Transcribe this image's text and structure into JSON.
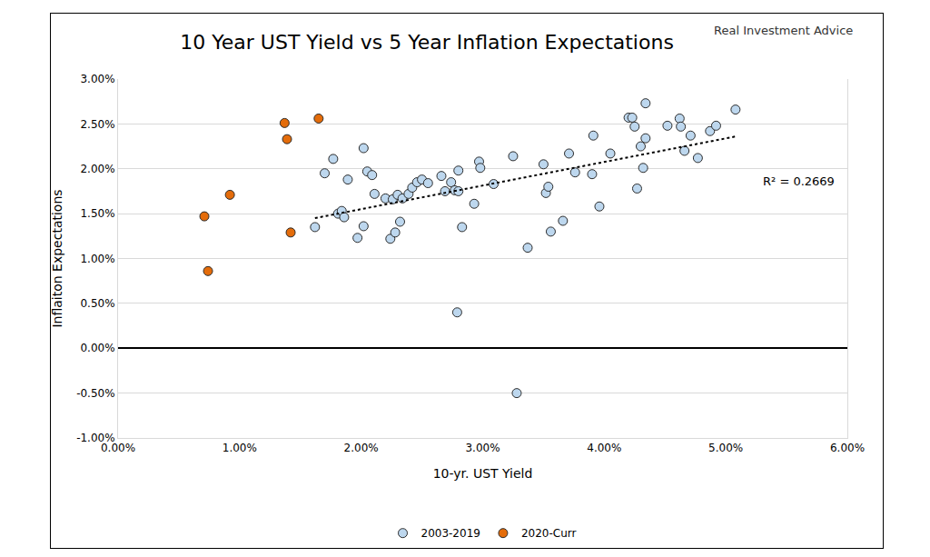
{
  "chart_data": {
    "type": "scatter",
    "title": "10 Year UST Yield vs 5 Year Inflation Expectations",
    "x_label": "10-yr. UST Yield",
    "y_label": "Inflaiton Expectations",
    "annotations": [
      {
        "text": "R² = 0.2669"
      },
      {
        "text": "Real Investment Advice"
      }
    ],
    "xlim": [
      0,
      6
    ],
    "ylim": [
      -1,
      3
    ],
    "xticks": [
      {
        "value": 0,
        "label": "0.00%"
      },
      {
        "value": 1,
        "label": "1.00%"
      },
      {
        "value": 2,
        "label": "2.00%"
      },
      {
        "value": 3,
        "label": "3.00%"
      },
      {
        "value": 4,
        "label": "4.00%"
      },
      {
        "value": 5,
        "label": "5.00%"
      },
      {
        "value": 6,
        "label": "6.00%"
      }
    ],
    "yticks": [
      {
        "value": -1,
        "label": "-1.00%"
      },
      {
        "value": -0.5,
        "label": "-0.50%"
      },
      {
        "value": 0,
        "label": "0.00%"
      },
      {
        "value": 0.5,
        "label": "0.50%"
      },
      {
        "value": 1,
        "label": "1.00%"
      },
      {
        "value": 1.5,
        "label": "1.50%"
      },
      {
        "value": 2,
        "label": "2.00%"
      },
      {
        "value": 2.5,
        "label": "2.50%"
      },
      {
        "value": 3,
        "label": "3.00%"
      }
    ],
    "grid": "y",
    "legend": "bottom",
    "series": [
      {
        "name": "2003-2019",
        "type": "scatter",
        "marker": "circle",
        "color": "#bdd7ee",
        "x": [
          1.62,
          1.7,
          1.77,
          1.81,
          1.84,
          1.86,
          1.89,
          1.97,
          2.02,
          2.02,
          2.05,
          2.09,
          2.11,
          2.2,
          2.24,
          2.26,
          2.28,
          2.3,
          2.32,
          2.34,
          2.39,
          2.42,
          2.46,
          2.5,
          2.55,
          2.66,
          2.69,
          2.74,
          2.77,
          2.79,
          2.8,
          2.8,
          2.83,
          2.93,
          2.97,
          2.98,
          3.09,
          3.25,
          3.28,
          3.37,
          3.5,
          3.52,
          3.54,
          3.56,
          3.66,
          3.71,
          3.76,
          3.9,
          3.91,
          3.96,
          4.05,
          4.2,
          4.23,
          4.25,
          4.27,
          4.3,
          4.32,
          4.34,
          4.34,
          4.52,
          4.62,
          4.63,
          4.66,
          4.71,
          4.77,
          4.87,
          4.92,
          5.08
        ],
        "values": [
          1.35,
          1.95,
          2.11,
          1.5,
          1.53,
          1.46,
          1.88,
          1.23,
          2.23,
          1.36,
          1.97,
          1.93,
          1.72,
          1.67,
          1.22,
          1.66,
          1.29,
          1.71,
          1.41,
          1.67,
          1.72,
          1.79,
          1.85,
          1.88,
          1.84,
          1.92,
          1.75,
          1.85,
          1.76,
          0.4,
          1.98,
          1.75,
          1.35,
          1.61,
          2.08,
          2.01,
          1.83,
          2.14,
          -0.5,
          1.12,
          2.05,
          1.73,
          1.8,
          1.3,
          1.42,
          2.17,
          1.96,
          1.94,
          2.37,
          1.58,
          2.17,
          2.57,
          2.57,
          2.47,
          1.78,
          2.25,
          2.01,
          2.34,
          2.73,
          2.48,
          2.56,
          2.47,
          2.2,
          2.37,
          2.12,
          2.42,
          2.48,
          2.66
        ]
      },
      {
        "name": "2020-Curr",
        "type": "scatter",
        "marker": "circle",
        "color": "#e46c0a",
        "x": [
          0.71,
          0.74,
          0.92,
          1.37,
          1.39,
          1.42,
          1.65
        ],
        "values": [
          1.47,
          0.86,
          1.71,
          2.51,
          2.33,
          1.29,
          2.56
        ]
      },
      {
        "type": "line",
        "line_style": "dotted",
        "color": "#000000",
        "x": [
          1.62,
          5.08
        ],
        "values": [
          1.45,
          2.36
        ]
      }
    ]
  }
}
